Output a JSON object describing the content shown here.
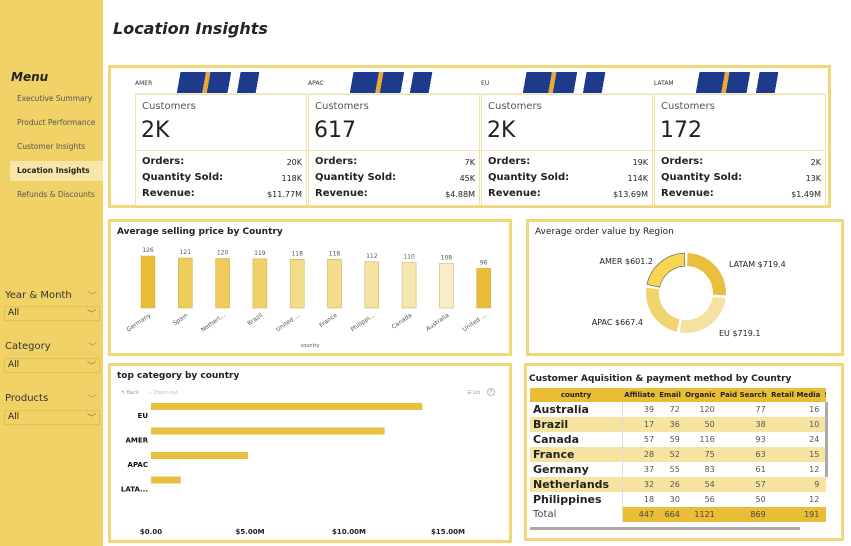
{
  "page": {
    "title": "Location Insights"
  },
  "sidebar": {
    "menu_title": "Menu",
    "items": [
      {
        "label": "Executive Summary"
      },
      {
        "label": "Product Performance"
      },
      {
        "label": "Customer Insights"
      },
      {
        "label": "Location Insights",
        "active": true
      },
      {
        "label": "Refunds & Discounts"
      }
    ],
    "filters": [
      {
        "label": "Year & Month",
        "value": "All"
      },
      {
        "label": "Category",
        "value": "All"
      },
      {
        "label": "Products",
        "value": "All"
      }
    ]
  },
  "kpis": [
    {
      "region": "AMER",
      "customers_label": "Customers",
      "customers": "2K",
      "orders_label": "Orders:",
      "orders": "20K",
      "qty_label": "Quantity Sold:",
      "qty": "118K",
      "rev_label": "Revenue:",
      "revenue": "$11.77M"
    },
    {
      "region": "APAC",
      "customers_label": "Customers",
      "customers": "617",
      "orders_label": "Orders:",
      "orders": "7K",
      "qty_label": "Quantity Sold:",
      "qty": "45K",
      "rev_label": "Revenue:",
      "revenue": "$4.88M"
    },
    {
      "region": "EU",
      "customers_label": "Customers",
      "customers": "2K",
      "orders_label": "Orders:",
      "orders": "19K",
      "qty_label": "Quantity Sold:",
      "qty": "114K",
      "rev_label": "Revenue:",
      "revenue": "$13.69M"
    },
    {
      "region": "LATAM",
      "customers_label": "Customers",
      "customers": "172",
      "orders_label": "Orders:",
      "orders": "2K",
      "qty_label": "Quantity Sold:",
      "qty": "13K",
      "rev_label": "Revenue:",
      "revenue": "$1.49M"
    }
  ],
  "chart_data": [
    {
      "type": "bar",
      "title": "Average selling price by Country",
      "xlabel": "country",
      "ylabel": "",
      "ylim": [
        0,
        130
      ],
      "categories": [
        "Germany",
        "Spain",
        "Netherl...",
        "Brazil",
        "United ...",
        "France",
        "Philippi...",
        "Canada",
        "Australia",
        "United ..."
      ],
      "values": [
        126,
        121,
        120,
        119,
        118,
        118,
        112,
        110,
        108,
        96
      ],
      "colors": [
        "#e9bd35",
        "#efcc5c",
        "#efcc5c",
        "#f0d06a",
        "#f3dc8c",
        "#f3dc8c",
        "#f5e3a3",
        "#f6e7b2",
        "#f8edc8",
        "#e9bd35"
      ]
    },
    {
      "type": "pie",
      "title": "Average order value by Region",
      "categories": [
        "LATAM",
        "EU",
        "APAC",
        "AMER"
      ],
      "values": [
        719.4,
        719.1,
        667.4,
        601.2
      ],
      "labels": [
        "LATAM $719.4",
        "EU $719.1",
        "APAC $667.4",
        "AMER $601.2"
      ],
      "colors": [
        "#e9c03e",
        "#f4e2a2",
        "#f1d470",
        "#f8d652"
      ]
    },
    {
      "type": "bar",
      "orientation": "horizontal",
      "title": "top category by country",
      "categories": [
        "EU",
        "AMER",
        "APAC",
        "LATA..."
      ],
      "values": [
        13.7,
        11.8,
        4.9,
        1.5
      ],
      "xlim": [
        0,
        17
      ],
      "xticks": [
        "$0.00",
        "$5.00M",
        "$10.00M",
        "$15.00M"
      ],
      "tick_values": [
        0,
        5,
        10,
        15
      ],
      "color": "#e9c03e",
      "toolbar": {
        "back": "Back",
        "zoom_out": "Zoom-out",
        "legend": "Lin",
        "help": "?"
      }
    },
    {
      "type": "table",
      "title": "Customer Aquisition & payment method by Country",
      "columns": [
        "country",
        "Affiliate",
        "Email",
        "Organic",
        "Paid Search",
        "Retail Media",
        "S"
      ],
      "rows": [
        [
          "Australia",
          "39",
          "72",
          "120",
          "77",
          "16"
        ],
        [
          "Brazil",
          "17",
          "36",
          "50",
          "38",
          "10"
        ],
        [
          "Canada",
          "57",
          "59",
          "116",
          "93",
          "24"
        ],
        [
          "France",
          "28",
          "52",
          "75",
          "63",
          "15"
        ],
        [
          "Germany",
          "37",
          "55",
          "83",
          "61",
          "12"
        ],
        [
          "Netherlands",
          "32",
          "26",
          "54",
          "57",
          "9"
        ],
        [
          "Philippines",
          "18",
          "30",
          "56",
          "50",
          "12"
        ]
      ],
      "total": [
        "Total",
        "447",
        "664",
        "1121",
        "869",
        "191"
      ]
    }
  ]
}
